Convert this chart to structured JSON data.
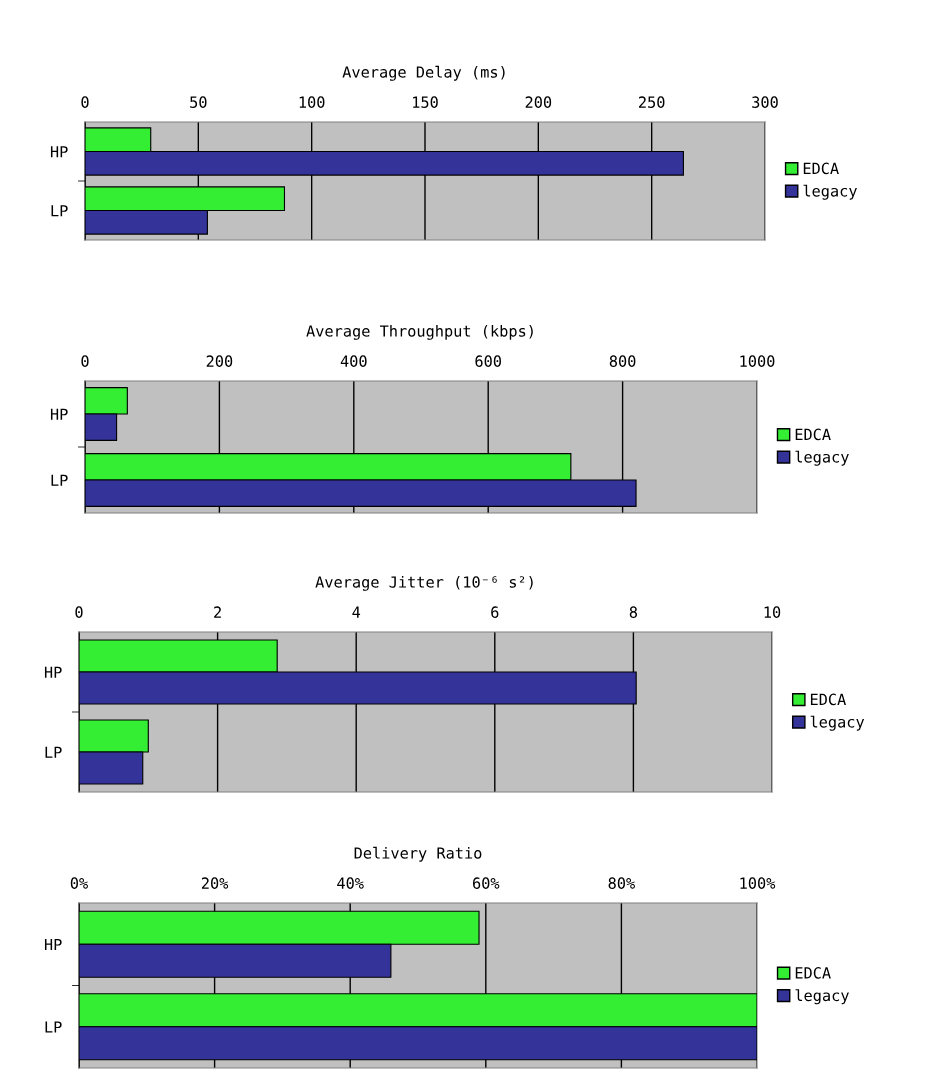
{
  "chart_data": [
    {
      "type": "bar",
      "orientation": "horizontal",
      "title": "Average Delay (ms)",
      "categories": [
        "HP",
        "LP"
      ],
      "series": [
        {
          "name": "EDCA",
          "color": "#33ee33",
          "values": [
            29,
            88
          ]
        },
        {
          "name": "legacy",
          "color": "#333399",
          "values": [
            264,
            54
          ]
        }
      ],
      "xlim": [
        0,
        300
      ],
      "xticks": [
        0,
        50,
        100,
        150,
        200,
        250,
        300
      ],
      "grid": "x",
      "legend": "right"
    },
    {
      "type": "bar",
      "orientation": "horizontal",
      "title": "Average Throughput (kbps)",
      "categories": [
        "HP",
        "LP"
      ],
      "series": [
        {
          "name": "EDCA",
          "color": "#33ee33",
          "values": [
            63,
            723
          ]
        },
        {
          "name": "legacy",
          "color": "#333399",
          "values": [
            47,
            820
          ]
        }
      ],
      "xlim": [
        0,
        1000
      ],
      "xticks": [
        0,
        200,
        400,
        600,
        800,
        1000
      ],
      "grid": "x",
      "legend": "right"
    },
    {
      "type": "bar",
      "orientation": "horizontal",
      "title": "Average Jitter (10⁻⁶ s²)",
      "categories": [
        "HP",
        "LP"
      ],
      "series": [
        {
          "name": "EDCA",
          "color": "#33ee33",
          "values": [
            2.86,
            1.0
          ]
        },
        {
          "name": "legacy",
          "color": "#333399",
          "values": [
            8.04,
            0.92
          ]
        }
      ],
      "xlim": [
        0,
        10
      ],
      "xticks": [
        0,
        2,
        4,
        6,
        8,
        10
      ],
      "grid": "x",
      "legend": "right"
    },
    {
      "type": "bar",
      "orientation": "horizontal",
      "title": "Delivery Ratio",
      "categories": [
        "HP",
        "LP"
      ],
      "series": [
        {
          "name": "EDCA",
          "color": "#33ee33",
          "values": [
            59,
            100
          ]
        },
        {
          "name": "legacy",
          "color": "#333399",
          "values": [
            46,
            100
          ]
        }
      ],
      "xlim": [
        0,
        100
      ],
      "xticks": [
        {
          "value": 0,
          "label": "0%"
        },
        {
          "value": 20,
          "label": "20%"
        },
        {
          "value": 40,
          "label": "40%"
        },
        {
          "value": 60,
          "label": "60%"
        },
        {
          "value": 80,
          "label": "80%"
        },
        {
          "value": 100,
          "label": "100%"
        }
      ],
      "grid": "x",
      "legend": "right"
    }
  ]
}
